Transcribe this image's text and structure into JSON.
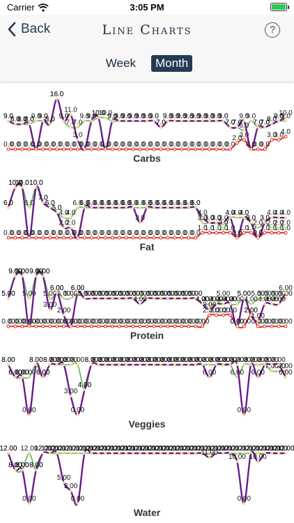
{
  "status_bar": {
    "carrier": "Carrier",
    "time": "3:05 PM"
  },
  "nav": {
    "back_label": "Back",
    "title": "Line Charts",
    "help_label": "?"
  },
  "segment": {
    "options": [
      "Week",
      "Month"
    ],
    "selected": "Month"
  },
  "colors": {
    "series_purple": "#6a1b8a",
    "series_green": "#6cb86c",
    "series_red": "#e2231a",
    "points": "#f0d890",
    "accent": "#243b55"
  },
  "chart_data": [
    {
      "type": "line",
      "title": "Carbs",
      "x": [
        1,
        2,
        3,
        4,
        5,
        6,
        7,
        8,
        9,
        10,
        11,
        12,
        13,
        14,
        15,
        16,
        17,
        18,
        19,
        20,
        21,
        22,
        23,
        24,
        25,
        26,
        27,
        28,
        29,
        30,
        31,
        32,
        33,
        34,
        35,
        36,
        37,
        38,
        39,
        40,
        41
      ],
      "ylim": [
        0,
        16
      ],
      "series": [
        {
          "values": [
            9,
            8,
            8,
            8,
            0,
            9,
            8,
            16,
            9,
            11,
            3,
            0,
            9,
            10,
            0,
            9,
            9,
            9,
            9,
            9,
            9,
            9,
            7,
            9,
            9,
            9,
            9,
            9,
            9,
            9,
            9,
            9,
            7,
            7,
            9,
            0,
            7,
            7,
            8,
            9,
            10
          ]
        },
        {
          "values": [
            9,
            8,
            8,
            8,
            9,
            9,
            8,
            16,
            9,
            7,
            7,
            9,
            9,
            10,
            10,
            9,
            9,
            9,
            9,
            9,
            9,
            9,
            7,
            9,
            9,
            9,
            9,
            9,
            9,
            9,
            9,
            9,
            7,
            7,
            6,
            9,
            7,
            7,
            8,
            9,
            9
          ]
        },
        {
          "values": [
            0,
            0,
            0,
            0,
            0,
            0,
            0,
            0,
            0,
            0,
            0,
            0,
            0,
            0,
            0,
            0,
            0,
            0,
            0,
            0,
            0,
            0,
            0,
            0,
            0,
            0,
            0,
            0,
            0,
            0,
            0,
            0,
            0,
            2,
            3,
            0,
            0,
            0,
            3,
            3,
            4
          ]
        }
      ]
    },
    {
      "type": "line",
      "title": "Fat",
      "x": [
        1,
        2,
        3,
        4,
        5,
        6,
        7,
        8,
        9,
        10,
        11,
        12,
        13,
        14,
        15,
        16,
        17,
        18,
        19,
        20,
        21,
        22,
        23,
        24,
        25,
        26,
        27,
        28,
        29,
        30,
        31,
        32,
        33,
        34,
        35,
        36,
        37,
        38,
        39,
        40,
        41
      ],
      "ylim": [
        0,
        10
      ],
      "series": [
        {
          "values": [
            6,
            10,
            10,
            0,
            10,
            7,
            6,
            5,
            2,
            2,
            0,
            6,
            6,
            6,
            6,
            6,
            6,
            6,
            6,
            3,
            6,
            6,
            6,
            6,
            6,
            6,
            6,
            6,
            4,
            3,
            3,
            3,
            4,
            0,
            4,
            3,
            0,
            3,
            4,
            4,
            4
          ]
        },
        {
          "values": [
            6,
            10,
            10,
            6,
            10,
            7,
            6,
            5,
            4,
            4,
            6,
            6,
            6,
            6,
            6,
            6,
            6,
            6,
            6,
            6,
            6,
            6,
            6,
            6,
            6,
            6,
            6,
            6,
            3,
            3,
            3,
            2,
            4,
            4,
            4,
            3,
            2,
            3,
            2,
            2,
            2
          ]
        },
        {
          "values": [
            0,
            0,
            0,
            0,
            0,
            0,
            0,
            0,
            0,
            0,
            0,
            0,
            0,
            0,
            0,
            0,
            0,
            0,
            0,
            0,
            0,
            0,
            0,
            0,
            0,
            0,
            0,
            0,
            1,
            1,
            1,
            1,
            1,
            0,
            1,
            1,
            0,
            1,
            1,
            1,
            1
          ]
        }
      ]
    },
    {
      "type": "line",
      "title": "Protein",
      "x": [
        1,
        2,
        3,
        4,
        5,
        6,
        7,
        8,
        9,
        10,
        11,
        12,
        13,
        14,
        15,
        16,
        17,
        18,
        19,
        20,
        21,
        22,
        23,
        24,
        25,
        26,
        27,
        28,
        29,
        30,
        31,
        32,
        33,
        34,
        35,
        36,
        37,
        38,
        39,
        40,
        41
      ],
      "ylim": [
        0,
        9
      ],
      "series": [
        {
          "values": [
            5,
            9,
            9,
            0,
            9,
            9,
            3,
            6,
            2,
            0,
            6,
            5,
            5,
            5,
            5,
            5,
            5,
            5,
            5,
            4,
            5,
            5,
            5,
            5,
            5,
            5,
            5,
            5,
            4,
            3,
            4,
            4,
            4,
            0,
            5,
            2,
            1,
            4,
            4,
            4,
            6
          ]
        },
        {
          "values": [
            5,
            9,
            9,
            5,
            9,
            9,
            5,
            6,
            5,
            5,
            6,
            5,
            5,
            5,
            5,
            5,
            5,
            5,
            5,
            5,
            5,
            5,
            5,
            5,
            5,
            5,
            5,
            5,
            4,
            4,
            4,
            5,
            4,
            4,
            5,
            4,
            5,
            5,
            5,
            5,
            5
          ]
        },
        {
          "values": [
            0,
            0,
            0,
            0,
            0,
            0,
            0,
            0,
            0,
            0,
            0,
            0,
            0,
            0,
            0,
            0,
            0,
            0,
            0,
            0,
            0,
            0,
            0,
            0,
            0,
            0,
            0,
            0,
            0,
            2,
            2,
            2,
            2,
            0,
            0,
            2,
            0,
            0,
            0,
            0,
            0
          ]
        }
      ]
    },
    {
      "type": "line",
      "title": "Veggies",
      "x": [
        1,
        2,
        3,
        4,
        5,
        6,
        7,
        8,
        9,
        10,
        11,
        12,
        13,
        14,
        15,
        16,
        17,
        18,
        19,
        20,
        21,
        22,
        23,
        24,
        25,
        26,
        27,
        28,
        29,
        30,
        31,
        32,
        33,
        34,
        35,
        36,
        37,
        38,
        39,
        40,
        41
      ],
      "ylim": [
        0,
        8
      ],
      "series": [
        {
          "values": [
            8,
            6,
            6,
            0,
            8,
            6,
            8,
            8,
            8,
            3,
            0,
            4,
            8,
            8,
            8,
            8,
            8,
            8,
            8,
            8,
            8,
            8,
            8,
            8,
            8,
            8,
            8,
            8,
            8,
            6,
            8,
            8,
            8,
            8,
            0,
            8,
            6,
            8,
            8,
            8,
            6
          ]
        },
        {
          "values": [
            8,
            6,
            6,
            6,
            8,
            6,
            8,
            8,
            8,
            8,
            8,
            4,
            8,
            8,
            8,
            8,
            8,
            8,
            8,
            8,
            8,
            8,
            8,
            8,
            8,
            8,
            8,
            8,
            8,
            8,
            8,
            8,
            8,
            6,
            8,
            8,
            8,
            8,
            7,
            7,
            7
          ]
        }
      ]
    },
    {
      "type": "line",
      "title": "Water",
      "x": [
        1,
        2,
        3,
        4,
        5,
        6,
        7,
        8,
        9,
        10,
        11,
        12,
        13,
        14,
        15,
        16,
        17,
        18,
        19,
        20,
        21,
        22,
        23,
        24,
        25,
        26,
        27,
        28,
        29,
        30,
        31,
        32,
        33,
        34,
        35,
        36,
        37,
        38,
        39,
        40,
        41
      ],
      "ylim": [
        0,
        12
      ],
      "series": [
        {
          "values": [
            12,
            8,
            8,
            0,
            8,
            12,
            12,
            12,
            5,
            3,
            0,
            12,
            12,
            12,
            12,
            12,
            12,
            12,
            12,
            12,
            12,
            12,
            12,
            12,
            12,
            12,
            12,
            12,
            12,
            11,
            12,
            12,
            12,
            10,
            0,
            12,
            10,
            12,
            12,
            12,
            12
          ]
        },
        {
          "values": [
            12,
            8,
            8,
            12,
            8,
            12,
            12,
            12,
            12,
            12,
            12,
            12,
            12,
            12,
            12,
            12,
            12,
            12,
            12,
            12,
            12,
            12,
            12,
            12,
            12,
            12,
            12,
            12,
            12,
            12,
            12,
            12,
            12,
            12,
            12,
            12,
            12,
            12,
            12,
            12,
            12
          ]
        }
      ]
    }
  ]
}
